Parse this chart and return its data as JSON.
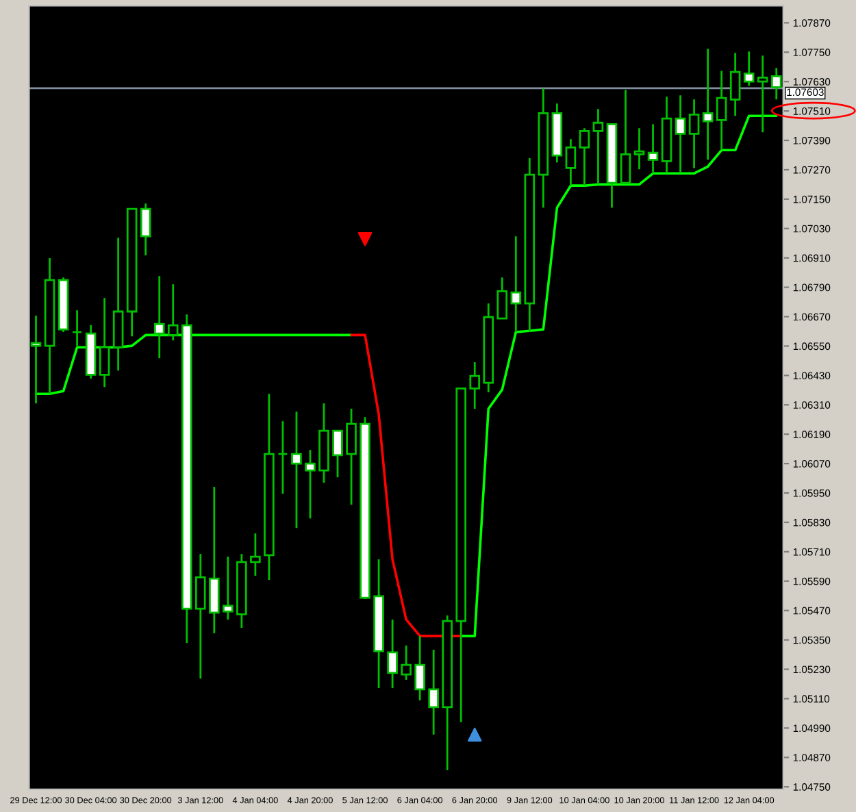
{
  "chart_data": {
    "type": "candlestick",
    "categories": [
      "29 Dec 12:00",
      null,
      null,
      null,
      "30 Dec 04:00",
      null,
      null,
      null,
      "30 Dec 20:00",
      null,
      null,
      null,
      "3 Jan 12:00",
      null,
      null,
      null,
      "4 Jan 04:00",
      null,
      null,
      null,
      "4 Jan 20:00",
      null,
      null,
      null,
      "5 Jan 12:00",
      null,
      null,
      null,
      "6 Jan 04:00",
      null,
      null,
      null,
      "6 Jan 20:00",
      null,
      null,
      null,
      "9 Jan 12:00",
      null,
      null,
      null,
      "10 Jan 04:00",
      null,
      null,
      null,
      "10 Jan 20:00",
      null,
      null,
      null,
      "11 Jan 12:00",
      null,
      null,
      null,
      "12 Jan 04:00",
      null,
      null
    ],
    "ohlc": [
      [
        1.06562,
        1.06674,
        1.06316,
        1.06551
      ],
      [
        1.06551,
        1.06909,
        1.06355,
        1.06819
      ],
      [
        1.06819,
        1.0683,
        1.06607,
        1.06618
      ],
      [
        1.06607,
        1.06696,
        1.06551,
        1.06607
      ],
      [
        1.06601,
        1.06635,
        1.06417,
        1.06433
      ],
      [
        1.06433,
        1.06746,
        1.06383,
        1.06545
      ],
      [
        1.06545,
        1.06992,
        1.0645,
        1.06691
      ],
      [
        1.06691,
        1.0711,
        1.0659,
        1.0711
      ],
      [
        1.0711,
        1.07132,
        1.0692,
        1.06998
      ],
      [
        1.0664,
        1.06836,
        1.065,
        1.06601
      ],
      [
        1.06595,
        1.06802,
        1.06573,
        1.06635
      ],
      [
        1.06635,
        1.06679,
        1.05338,
        1.05477
      ],
      [
        1.05477,
        1.05701,
        1.05192,
        1.05606
      ],
      [
        1.056,
        1.05975,
        1.05377,
        1.05461
      ],
      [
        1.05489,
        1.0569,
        1.05433,
        1.05466
      ],
      [
        1.05455,
        1.05701,
        1.05399,
        1.05668
      ],
      [
        1.05668,
        1.05785,
        1.05612,
        1.0569
      ],
      [
        1.05696,
        1.06355,
        1.05595,
        1.06109
      ],
      [
        1.06109,
        1.06243,
        1.05947,
        1.06109
      ],
      [
        1.06109,
        1.06282,
        1.05807,
        1.0607
      ],
      [
        1.0607,
        1.06126,
        1.05846,
        1.06042
      ],
      [
        1.06042,
        1.06316,
        1.05992,
        1.06204
      ],
      [
        1.06204,
        1.06204,
        1.06014,
        1.06104
      ],
      [
        1.06109,
        1.06294,
        1.05902,
        1.06232
      ],
      [
        1.06232,
        1.0626,
        1.05517,
        1.05522
      ],
      [
        1.05528,
        1.05679,
        1.05153,
        1.05304
      ],
      [
        1.05299,
        1.05433,
        1.05153,
        1.05215
      ],
      [
        1.05209,
        1.05327,
        1.05187,
        1.05248
      ],
      [
        1.05248,
        1.05366,
        1.05103,
        1.05148
      ],
      [
        1.05148,
        1.0531,
        1.04963,
        1.05075
      ],
      [
        1.05075,
        1.0545,
        1.04818,
        1.05427
      ],
      [
        1.05427,
        1.06377,
        1.05014,
        1.06377
      ],
      [
        1.06377,
        1.06484,
        1.06294,
        1.06428
      ],
      [
        1.064,
        1.06724,
        1.06361,
        1.06668
      ],
      [
        1.06663,
        1.0683,
        1.06663,
        1.06774
      ],
      [
        1.06769,
        1.06998,
        1.06607,
        1.06724
      ],
      [
        1.06724,
        1.07317,
        1.06607,
        1.0725
      ],
      [
        1.0725,
        1.07602,
        1.07115,
        1.07501
      ],
      [
        1.07501,
        1.0754,
        1.073,
        1.07328
      ],
      [
        1.07277,
        1.07395,
        1.07205,
        1.07361
      ],
      [
        1.07361,
        1.0744,
        1.07205,
        1.07428
      ],
      [
        1.07428,
        1.07518,
        1.0721,
        1.07462
      ],
      [
        1.07456,
        1.07456,
        1.07115,
        1.07216
      ],
      [
        1.07216,
        1.07596,
        1.07216,
        1.07333
      ],
      [
        1.07333,
        1.0744,
        1.07272,
        1.07345
      ],
      [
        1.07339,
        1.07456,
        1.07255,
        1.07311
      ],
      [
        1.07305,
        1.07568,
        1.07255,
        1.07479
      ],
      [
        1.07479,
        1.07574,
        1.07255,
        1.07417
      ],
      [
        1.07417,
        1.07557,
        1.07277,
        1.07495
      ],
      [
        1.07501,
        1.07764,
        1.07311,
        1.07468
      ],
      [
        1.07473,
        1.07674,
        1.0735,
        1.07563
      ],
      [
        1.07557,
        1.07747,
        1.0749,
        1.07669
      ],
      [
        1.07663,
        1.07753,
        1.07613,
        1.0763
      ],
      [
        1.0763,
        1.07736,
        1.07423,
        1.07646
      ],
      [
        1.07652,
        1.07686,
        1.07557,
        1.07607
      ]
    ],
    "series": [
      {
        "type": "line",
        "color": "#00ff00",
        "values": [
          1.06355,
          1.06355,
          1.06366,
          1.06545,
          1.06545,
          1.06545,
          1.06545,
          1.06551,
          1.06595,
          1.06595,
          1.06595,
          1.06595,
          1.06595,
          1.06595,
          1.06595,
          1.06595,
          1.06595,
          1.06595,
          1.06595,
          1.06595,
          1.06595,
          1.06595,
          1.06595,
          1.06595,
          null,
          null,
          null,
          null,
          null,
          null,
          null,
          1.05366,
          1.05366,
          1.06294,
          1.06372,
          1.06607,
          1.06612,
          1.06618,
          1.07115,
          1.07205,
          1.07205,
          1.0721,
          1.0721,
          1.0721,
          1.0721,
          1.07255,
          1.07255,
          1.07255,
          1.07255,
          1.07283,
          1.0735,
          1.0735,
          1.0749,
          1.0749,
          1.0749
        ]
      },
      {
        "type": "line",
        "color": "#ff0000",
        "values": [
          null,
          null,
          null,
          null,
          null,
          null,
          null,
          null,
          null,
          null,
          null,
          null,
          null,
          null,
          null,
          null,
          null,
          null,
          null,
          null,
          null,
          null,
          null,
          1.06595,
          1.06595,
          1.06271,
          1.05679,
          1.05433,
          1.05366,
          1.05366,
          1.05366,
          1.05366,
          null,
          null,
          null,
          null,
          null,
          null,
          null,
          null,
          null,
          null,
          null,
          null,
          null,
          null,
          null,
          null,
          null,
          null,
          null,
          null,
          null,
          null,
          null
        ]
      },
      {
        "type": "scatter",
        "color": "#ff0000",
        "marker": "triangle",
        "values": [
          null,
          null,
          null,
          null,
          null,
          null,
          null,
          null,
          null,
          null,
          null,
          null,
          null,
          null,
          null,
          null,
          null,
          null,
          null,
          null,
          null,
          null,
          null,
          null,
          1.06987,
          null,
          null,
          null,
          null,
          null,
          null,
          null,
          null,
          null,
          null,
          null,
          null,
          null,
          null,
          null,
          null,
          null,
          null,
          null,
          null,
          null,
          null,
          null,
          null,
          null,
          null,
          null,
          null,
          null,
          null
        ]
      },
      {
        "type": "scatter",
        "color": "#3f8fdf",
        "marker": "triangle",
        "values": [
          null,
          null,
          null,
          null,
          null,
          null,
          null,
          null,
          null,
          null,
          null,
          null,
          null,
          null,
          null,
          null,
          null,
          null,
          null,
          null,
          null,
          null,
          null,
          null,
          null,
          null,
          null,
          null,
          null,
          null,
          null,
          null,
          1.04963,
          null,
          null,
          null,
          null,
          null,
          null,
          null,
          null,
          null,
          null,
          null,
          null,
          null,
          null,
          null,
          null,
          null,
          null,
          null,
          null,
          null,
          null
        ]
      }
    ],
    "ylim": [
      1.0474,
      1.0794
    ],
    "yticks": [
      {
        "value": 1.0475,
        "label": "1.04750"
      },
      {
        "value": 1.0487,
        "label": "1.04870"
      },
      {
        "value": 1.0499,
        "label": "1.04990"
      },
      {
        "value": 1.0511,
        "label": "1.05110"
      },
      {
        "value": 1.0523,
        "label": "1.05230"
      },
      {
        "value": 1.0535,
        "label": "1.05350"
      },
      {
        "value": 1.0547,
        "label": "1.05470"
      },
      {
        "value": 1.0559,
        "label": "1.05590"
      },
      {
        "value": 1.0571,
        "label": "1.05710"
      },
      {
        "value": 1.0583,
        "label": "1.05830"
      },
      {
        "value": 1.0595,
        "label": "1.05950"
      },
      {
        "value": 1.0607,
        "label": "1.06070"
      },
      {
        "value": 1.0619,
        "label": "1.06190"
      },
      {
        "value": 1.0631,
        "label": "1.06310"
      },
      {
        "value": 1.0643,
        "label": "1.06430"
      },
      {
        "value": 1.0655,
        "label": "1.06550"
      },
      {
        "value": 1.0667,
        "label": "1.06670"
      },
      {
        "value": 1.0679,
        "label": "1.06790"
      },
      {
        "value": 1.0691,
        "label": "1.06910"
      },
      {
        "value": 1.0703,
        "label": "1.07030"
      },
      {
        "value": 1.0715,
        "label": "1.07150"
      },
      {
        "value": 1.0727,
        "label": "1.07270"
      },
      {
        "value": 1.0739,
        "label": "1.07390"
      },
      {
        "value": 1.0751,
        "label": "1.07510"
      },
      {
        "value": 1.0763,
        "label": "1.07630"
      },
      {
        "value": 1.0775,
        "label": "1.07750"
      },
      {
        "value": 1.0787,
        "label": "1.07870"
      }
    ],
    "ref_lines": [
      {
        "axis": "y",
        "value": 1.07603,
        "label": "1.07603",
        "color": "#8090a0"
      }
    ],
    "grid": false
  }
}
